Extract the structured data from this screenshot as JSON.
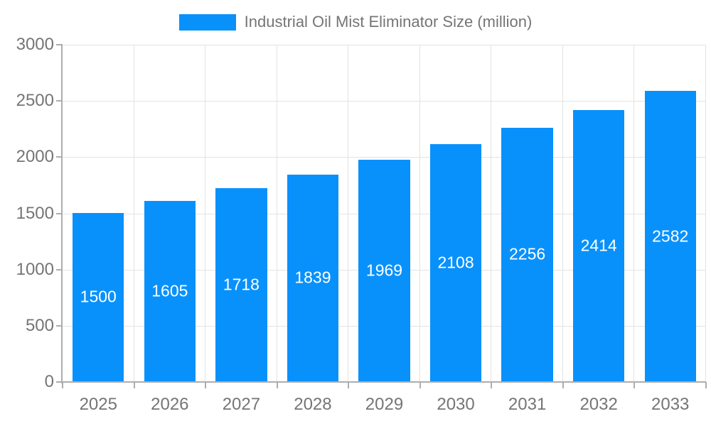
{
  "legend": {
    "label": "Industrial Oil Mist Eliminator Size (million)"
  },
  "chart_data": {
    "type": "bar",
    "title": "Industrial Oil Mist Eliminator Size (million)",
    "categories": [
      "2025",
      "2026",
      "2027",
      "2028",
      "2029",
      "2030",
      "2031",
      "2032",
      "2033"
    ],
    "values": [
      1500,
      1605,
      1718,
      1839,
      1969,
      2108,
      2256,
      2414,
      2582
    ],
    "xlabel": "",
    "ylabel": "",
    "ylim": [
      0,
      3000
    ],
    "yticks": [
      0,
      500,
      1000,
      1500,
      2000,
      2500,
      3000
    ],
    "grid": true,
    "legend_position": "top",
    "value_labels": "centered-in-bar",
    "colors": {
      "bar": "#0991FB",
      "grid": "#E3E3E3",
      "axis": "#ADADAD",
      "tick_text": "#757575",
      "value_label": "#FFFFFF",
      "background": "#FFFFFF"
    }
  }
}
